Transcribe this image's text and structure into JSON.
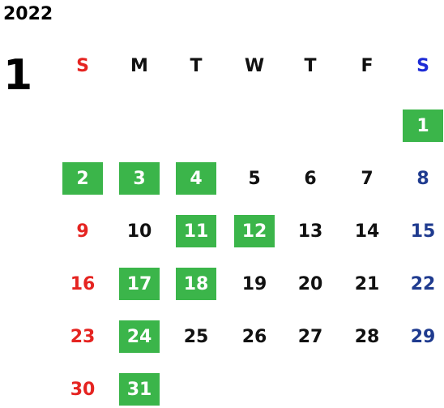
{
  "calendar": {
    "year": "2022",
    "month": "1",
    "weekdays": [
      "S",
      "M",
      "T",
      "W",
      "T",
      "F",
      "S"
    ],
    "colors": {
      "highlight": "#3bb54a",
      "sunday": "#e52421",
      "saturday_header": "#1d2bd6",
      "saturday": "#1f3b8f",
      "weekday": "#111111"
    },
    "first_weekday_index": 6,
    "days": [
      {
        "day": "1",
        "highlighted": true
      },
      {
        "day": "2",
        "highlighted": true
      },
      {
        "day": "3",
        "highlighted": true
      },
      {
        "day": "4",
        "highlighted": true
      },
      {
        "day": "5",
        "highlighted": false
      },
      {
        "day": "6",
        "highlighted": false
      },
      {
        "day": "7",
        "highlighted": false
      },
      {
        "day": "8",
        "highlighted": false
      },
      {
        "day": "9",
        "highlighted": false
      },
      {
        "day": "10",
        "highlighted": false
      },
      {
        "day": "11",
        "highlighted": true
      },
      {
        "day": "12",
        "highlighted": true
      },
      {
        "day": "13",
        "highlighted": false
      },
      {
        "day": "14",
        "highlighted": false
      },
      {
        "day": "15",
        "highlighted": false
      },
      {
        "day": "16",
        "highlighted": false
      },
      {
        "day": "17",
        "highlighted": true
      },
      {
        "day": "18",
        "highlighted": true
      },
      {
        "day": "19",
        "highlighted": false
      },
      {
        "day": "20",
        "highlighted": false
      },
      {
        "day": "21",
        "highlighted": false
      },
      {
        "day": "22",
        "highlighted": false
      },
      {
        "day": "23",
        "highlighted": false
      },
      {
        "day": "24",
        "highlighted": true
      },
      {
        "day": "25",
        "highlighted": false
      },
      {
        "day": "26",
        "highlighted": false
      },
      {
        "day": "27",
        "highlighted": false
      },
      {
        "day": "28",
        "highlighted": false
      },
      {
        "day": "29",
        "highlighted": false
      },
      {
        "day": "30",
        "highlighted": false
      },
      {
        "day": "31",
        "highlighted": true
      }
    ]
  }
}
